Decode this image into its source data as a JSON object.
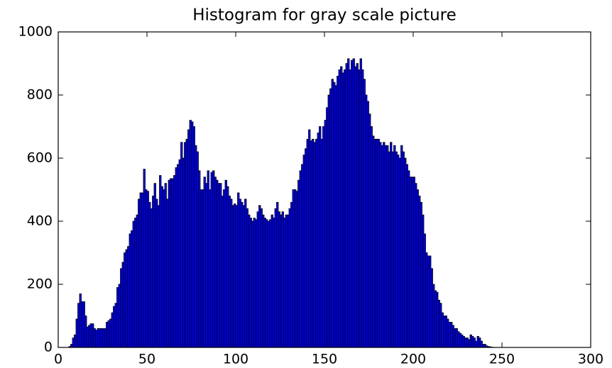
{
  "chart_data": {
    "type": "histogram",
    "title": "Histogram for gray scale picture",
    "color": "#0000ff",
    "edgecolor": "#000000",
    "xlim": [
      0,
      300
    ],
    "xticks": [
      0,
      50,
      100,
      150,
      200,
      250,
      300
    ],
    "ylim": [
      0,
      1000
    ],
    "yticks": [
      0,
      200,
      400,
      600,
      800,
      1000
    ],
    "bins": [
      0,
      1,
      2,
      3,
      4,
      5,
      6,
      7,
      8,
      9,
      10,
      11,
      12,
      13,
      14,
      15,
      16,
      17,
      18,
      19,
      20,
      21,
      22,
      23,
      24,
      25,
      26,
      27,
      28,
      29,
      30,
      31,
      32,
      33,
      34,
      35,
      36,
      37,
      38,
      39,
      40,
      41,
      42,
      43,
      44,
      45,
      46,
      47,
      48,
      49,
      50,
      51,
      52,
      53,
      54,
      55,
      56,
      57,
      58,
      59,
      60,
      61,
      62,
      63,
      64,
      65,
      66,
      67,
      68,
      69,
      70,
      71,
      72,
      73,
      74,
      75,
      76,
      77,
      78,
      79,
      80,
      81,
      82,
      83,
      84,
      85,
      86,
      87,
      88,
      89,
      90,
      91,
      92,
      93,
      94,
      95,
      96,
      97,
      98,
      99,
      100,
      101,
      102,
      103,
      104,
      105,
      106,
      107,
      108,
      109,
      110,
      111,
      112,
      113,
      114,
      115,
      116,
      117,
      118,
      119,
      120,
      121,
      122,
      123,
      124,
      125,
      126,
      127,
      128,
      129,
      130,
      131,
      132,
      133,
      134,
      135,
      136,
      137,
      138,
      139,
      140,
      141,
      142,
      143,
      144,
      145,
      146,
      147,
      148,
      149,
      150,
      151,
      152,
      153,
      154,
      155,
      156,
      157,
      158,
      159,
      160,
      161,
      162,
      163,
      164,
      165,
      166,
      167,
      168,
      169,
      170,
      171,
      172,
      173,
      174,
      175,
      176,
      177,
      178,
      179,
      180,
      181,
      182,
      183,
      184,
      185,
      186,
      187,
      188,
      189,
      190,
      191,
      192,
      193,
      194,
      195,
      196,
      197,
      198,
      199,
      200,
      201,
      202,
      203,
      204,
      205,
      206,
      207,
      208,
      209,
      210,
      211,
      212,
      213,
      214,
      215,
      216,
      217,
      218,
      219,
      220,
      221,
      222,
      223,
      224,
      225,
      226,
      227,
      228,
      229,
      230,
      231,
      232,
      233,
      234,
      235,
      236,
      237,
      238,
      239,
      240,
      241,
      242,
      243,
      244,
      245,
      246,
      247,
      248,
      249,
      250,
      251,
      252,
      253,
      254,
      255,
      256
    ],
    "values": [
      0,
      0,
      0,
      0,
      0,
      0,
      3,
      10,
      30,
      40,
      90,
      140,
      170,
      145,
      145,
      100,
      65,
      70,
      75,
      75,
      60,
      55,
      60,
      60,
      60,
      60,
      60,
      80,
      85,
      90,
      110,
      130,
      140,
      190,
      200,
      250,
      270,
      300,
      310,
      320,
      360,
      370,
      400,
      410,
      420,
      470,
      490,
      490,
      565,
      500,
      495,
      460,
      440,
      480,
      520,
      470,
      450,
      545,
      510,
      500,
      520,
      470,
      530,
      535,
      535,
      545,
      570,
      580,
      595,
      650,
      600,
      650,
      660,
      690,
      720,
      715,
      700,
      640,
      620,
      560,
      500,
      500,
      540,
      520,
      560,
      500,
      555,
      560,
      540,
      530,
      520,
      520,
      480,
      500,
      530,
      510,
      480,
      470,
      450,
      455,
      450,
      490,
      470,
      460,
      450,
      470,
      440,
      420,
      410,
      400,
      410,
      405,
      430,
      450,
      440,
      420,
      410,
      405,
      400,
      405,
      420,
      410,
      440,
      460,
      430,
      420,
      430,
      410,
      420,
      420,
      440,
      460,
      500,
      500,
      495,
      530,
      560,
      580,
      610,
      630,
      660,
      690,
      655,
      660,
      650,
      660,
      680,
      700,
      660,
      700,
      720,
      760,
      800,
      820,
      850,
      840,
      830,
      860,
      880,
      890,
      870,
      880,
      900,
      915,
      880,
      910,
      915,
      890,
      900,
      880,
      915,
      880,
      850,
      800,
      780,
      740,
      700,
      670,
      660,
      660,
      660,
      650,
      640,
      650,
      640,
      640,
      620,
      650,
      620,
      640,
      620,
      610,
      600,
      640,
      620,
      600,
      580,
      560,
      540,
      540,
      540,
      520,
      500,
      480,
      460,
      420,
      360,
      300,
      290,
      290,
      250,
      200,
      180,
      175,
      150,
      140,
      110,
      100,
      100,
      90,
      80,
      80,
      70,
      60,
      60,
      50,
      45,
      40,
      35,
      30,
      30,
      25,
      40,
      35,
      30,
      20,
      35,
      30,
      20,
      10,
      10,
      5,
      3,
      2,
      1,
      0,
      0,
      0,
      0,
      0,
      0,
      0,
      0,
      0,
      0,
      0
    ]
  }
}
